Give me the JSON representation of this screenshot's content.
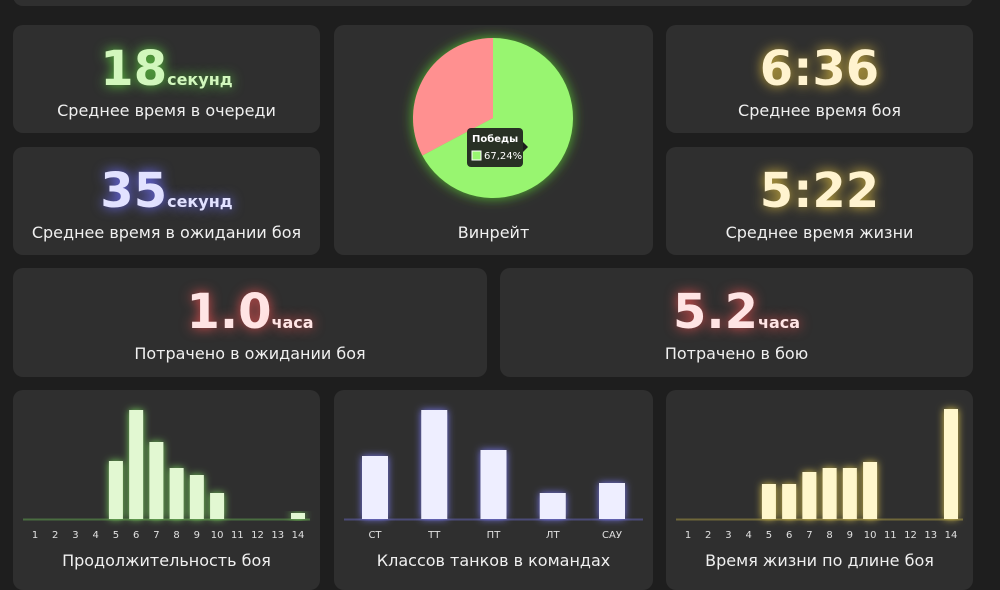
{
  "cards": [
    {
      "value": "18",
      "unit": "секунд",
      "label": "Среднее время в очереди"
    },
    {
      "value": "35",
      "unit": "секунд",
      "label": "Среднее время в ожидании боя"
    },
    {
      "value": "6:36",
      "label": "Среднее время боя"
    },
    {
      "value": "5:22",
      "label": "Среднее время жизни"
    },
    {
      "value": "1.0",
      "unit": "часа",
      "label": "Потрачено в ожидании боя"
    },
    {
      "value": "5.2",
      "unit": "часа",
      "label": "Потрачено в бою"
    }
  ],
  "winrate": {
    "type": "pie",
    "label": "Винрейт",
    "tooltip": "Победы",
    "values": [
      67.24,
      32.76
    ],
    "value_labels": [
      "67,24%",
      null
    ],
    "colors": [
      "#98f570",
      "#ff9090"
    ]
  },
  "charts": [
    {
      "type": "bar",
      "title": "Продолжительность боя",
      "categories": [
        "1",
        "2",
        "3",
        "4",
        "5",
        "6",
        "7",
        "8",
        "9",
        "10",
        "11",
        "12",
        "13",
        "14"
      ],
      "values": [
        0,
        0,
        0,
        0,
        58,
        109,
        77,
        51,
        44,
        26,
        0,
        0,
        0,
        6
      ],
      "color": "#e2f8d2",
      "glow": "#7ee060"
    },
    {
      "type": "bar",
      "title": "Классов танков в командах",
      "categories": [
        "СТ",
        "ТТ",
        "ПТ",
        "ЛТ",
        "САУ"
      ],
      "values": [
        63,
        109,
        69,
        26,
        36
      ],
      "color": "#eeeeff",
      "glow": "#8080ff"
    },
    {
      "type": "bar",
      "title": "Время жизни по длине боя",
      "categories": [
        "1",
        "2",
        "3",
        "4",
        "5",
        "6",
        "7",
        "8",
        "9",
        "10",
        "11",
        "12",
        "13",
        "14"
      ],
      "values": [
        0,
        0,
        0,
        0,
        35,
        35,
        47,
        51,
        51,
        57,
        0,
        0,
        0,
        110
      ],
      "color": "#fff7cc",
      "glow": "#e8d050"
    }
  ]
}
